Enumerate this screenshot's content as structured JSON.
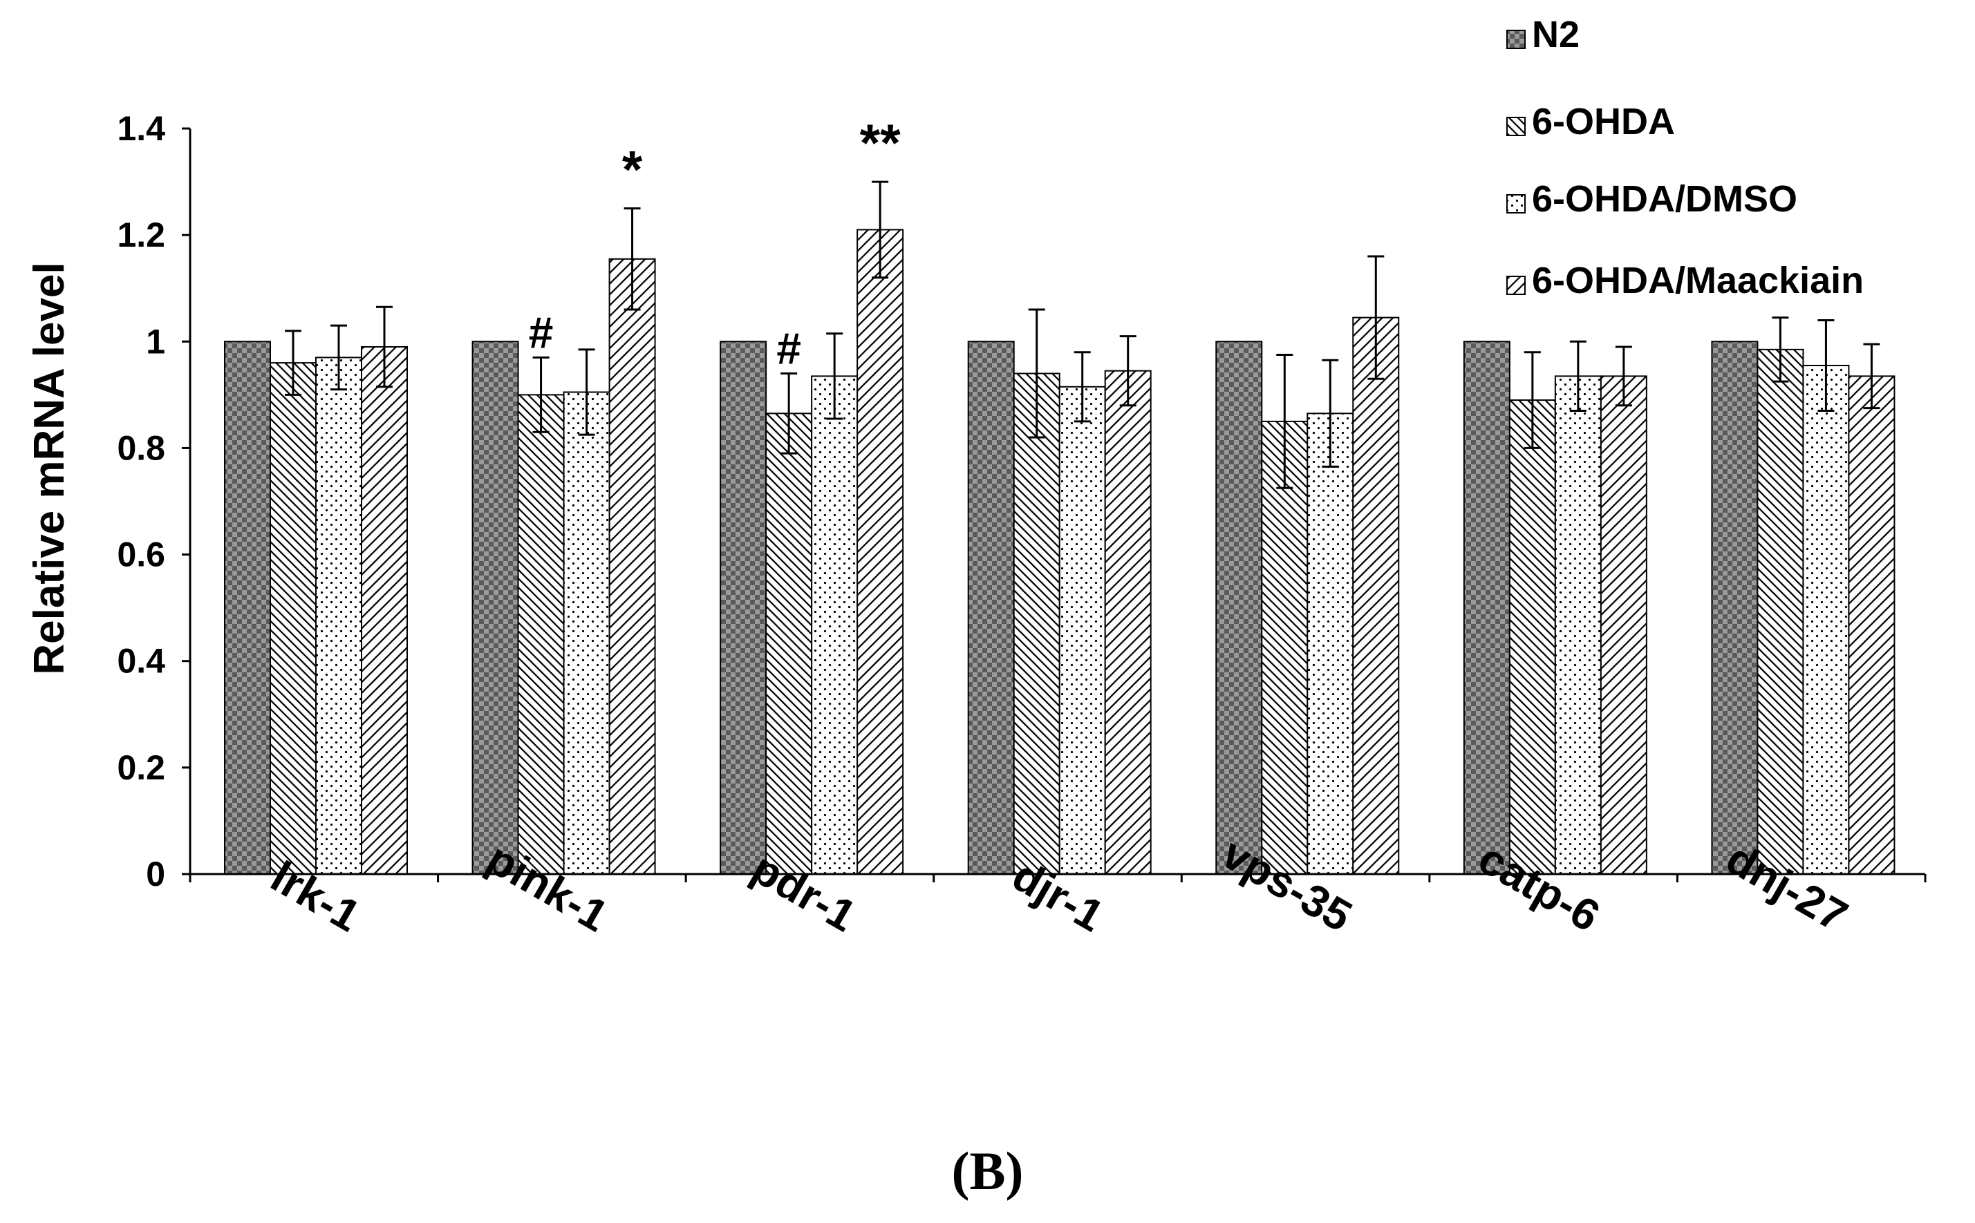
{
  "chart_data": {
    "type": "bar",
    "title": "",
    "xlabel": "",
    "ylabel": "Relative mRNA level",
    "ylim": [
      0,
      1.4
    ],
    "yticks": [
      "0",
      "0.2",
      "0.4",
      "0.6",
      "0.8",
      "1",
      "1.2",
      "1.4"
    ],
    "ytick_values": [
      0,
      0.2,
      0.4,
      0.6,
      0.8,
      1.0,
      1.2,
      1.4
    ],
    "grid": false,
    "legend_position": "top-right",
    "categories": [
      "lrk-1",
      "pink-1",
      "pdr-1",
      "djr-1",
      "vps-35",
      "catp-6",
      "dnj-27"
    ],
    "series": [
      {
        "name": "N2",
        "values": [
          1.0,
          1.0,
          1.0,
          1.0,
          1.0,
          1.0,
          1.0
        ],
        "errors": [
          0,
          0,
          0,
          0,
          0,
          0,
          0
        ]
      },
      {
        "name": "6-OHDA",
        "values": [
          0.96,
          0.9,
          0.865,
          0.94,
          0.85,
          0.89,
          0.985
        ],
        "errors": [
          0.06,
          0.07,
          0.075,
          0.12,
          0.125,
          0.09,
          0.06
        ]
      },
      {
        "name": "6-OHDA/DMSO",
        "values": [
          0.97,
          0.905,
          0.935,
          0.915,
          0.865,
          0.935,
          0.955
        ],
        "errors": [
          0.06,
          0.08,
          0.08,
          0.065,
          0.1,
          0.065,
          0.085
        ]
      },
      {
        "name": "6-OHDA/Maackiain",
        "values": [
          0.99,
          1.155,
          1.21,
          0.945,
          1.045,
          0.935,
          0.935
        ],
        "errors": [
          0.075,
          0.095,
          0.09,
          0.065,
          0.115,
          0.055,
          0.06
        ]
      }
    ],
    "annotations": [
      {
        "text": "#",
        "category": "pink-1",
        "series": "6-OHDA"
      },
      {
        "text": "*",
        "category": "pink-1",
        "series": "6-OHDA/Maackiain"
      },
      {
        "text": "#",
        "category": "pdr-1",
        "series": "6-OHDA"
      },
      {
        "text": "**",
        "category": "pdr-1",
        "series": "6-OHDA/Maackiain"
      }
    ]
  },
  "caption": "(B)"
}
